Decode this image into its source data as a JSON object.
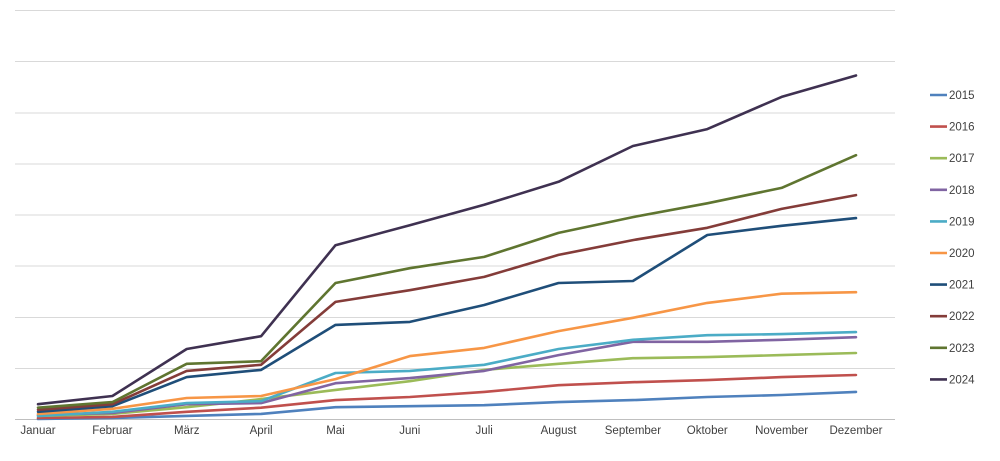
{
  "chart_data": {
    "type": "line",
    "title": "",
    "xlabel": "",
    "ylabel": "",
    "x": [
      "Januar",
      "Februar",
      "März",
      "April",
      "Mai",
      "Juni",
      "Juli",
      "August",
      "September",
      "Oktober",
      "November",
      "Dezember"
    ],
    "ylim": [
      0,
      8
    ],
    "gridlines": 9,
    "y_axis_labels_visible": false,
    "grid": true,
    "legend_position": "right",
    "series": [
      {
        "name": "2015",
        "color": "#4F81BD",
        "values": [
          0.01,
          0.03,
          0.07,
          0.11,
          0.24,
          0.26,
          0.28,
          0.34,
          0.38,
          0.44,
          0.48,
          0.54
        ]
      },
      {
        "name": "2016",
        "color": "#C0504D",
        "values": [
          0.03,
          0.05,
          0.15,
          0.23,
          0.38,
          0.44,
          0.54,
          0.67,
          0.73,
          0.77,
          0.83,
          0.87
        ]
      },
      {
        "name": "2017",
        "color": "#9BBB59",
        "values": [
          0.07,
          0.11,
          0.24,
          0.4,
          0.58,
          0.75,
          0.97,
          1.09,
          1.2,
          1.22,
          1.26,
          1.3
        ]
      },
      {
        "name": "2018",
        "color": "#8064A2",
        "values": [
          0.09,
          0.13,
          0.3,
          0.32,
          0.71,
          0.81,
          0.95,
          1.26,
          1.52,
          1.52,
          1.56,
          1.61
        ]
      },
      {
        "name": "2019",
        "color": "#4BACC6",
        "values": [
          0.07,
          0.15,
          0.32,
          0.36,
          0.91,
          0.95,
          1.07,
          1.38,
          1.56,
          1.65,
          1.67,
          1.71
        ]
      },
      {
        "name": "2020",
        "color": "#F79646",
        "values": [
          0.11,
          0.21,
          0.42,
          0.46,
          0.79,
          1.24,
          1.4,
          1.73,
          1.99,
          2.28,
          2.46,
          2.49
        ]
      },
      {
        "name": "2021",
        "color": "#1F4E79",
        "values": [
          0.15,
          0.26,
          0.83,
          0.97,
          1.85,
          1.91,
          2.24,
          2.67,
          2.71,
          3.61,
          3.79,
          3.94
        ]
      },
      {
        "name": "2022",
        "color": "#843C39",
        "values": [
          0.19,
          0.3,
          0.95,
          1.07,
          2.3,
          2.53,
          2.79,
          3.22,
          3.51,
          3.75,
          4.12,
          4.39
        ]
      },
      {
        "name": "2023",
        "color": "#5F7530",
        "values": [
          0.23,
          0.34,
          1.09,
          1.14,
          2.67,
          2.96,
          3.18,
          3.65,
          3.96,
          4.23,
          4.53,
          5.17
        ]
      },
      {
        "name": "2024",
        "color": "#3F3151",
        "values": [
          0.3,
          0.46,
          1.38,
          1.63,
          3.41,
          3.8,
          4.2,
          4.65,
          5.35,
          5.68,
          6.31,
          6.73
        ]
      }
    ],
    "colors": {
      "background": "#FFFFFF",
      "gridline": "#D9D9D9",
      "axis_line": "#BFBFBF",
      "text": "#404040"
    }
  }
}
